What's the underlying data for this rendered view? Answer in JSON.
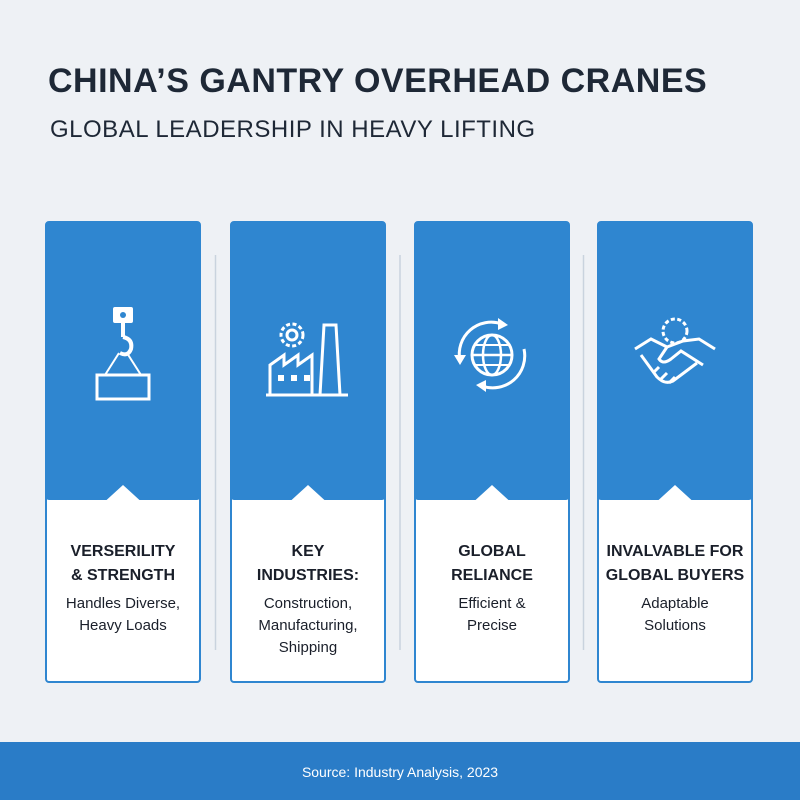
{
  "header": {
    "title": "CHINA’S GANTRY OVERHEAD CRANES",
    "subtitle": "GLOBAL LEADERSHIP IN HEAVY LIFTING"
  },
  "cards": [
    {
      "title": [
        "VERSERILITY",
        "& STRENGTH"
      ],
      "description": [
        "Handles Diverse,",
        "Heavy Loads"
      ]
    },
    {
      "title": [
        "KEY",
        "INDUSTRIES:"
      ],
      "description": [
        "Construction,",
        "Manufacturing,",
        "Shipping"
      ]
    },
    {
      "title": [
        "GLOBAL",
        "RELIANCE"
      ],
      "description": [
        "Efficient &",
        "Precise"
      ]
    },
    {
      "title": [
        "INVALVABLE FOR",
        "GLOBAL BUYERS"
      ],
      "description": [
        "Adaptable",
        "Solutions"
      ]
    }
  ],
  "footer": {
    "source": "Source: Industry Analysis, 2023"
  }
}
